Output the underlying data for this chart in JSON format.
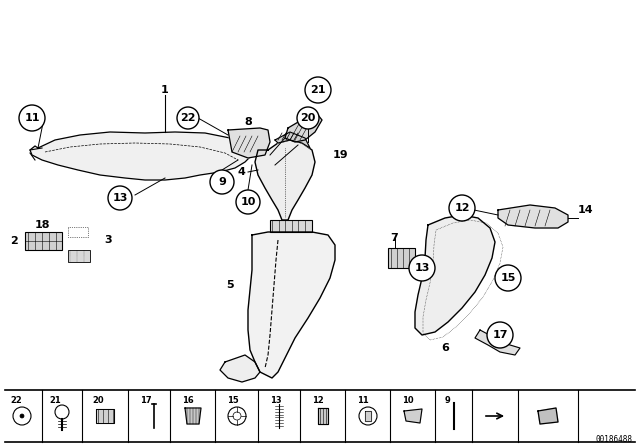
{
  "background_color": "#ffffff",
  "line_color": "#000000",
  "fig_width": 6.4,
  "fig_height": 4.48,
  "dpi": 100,
  "watermark": "00186488"
}
